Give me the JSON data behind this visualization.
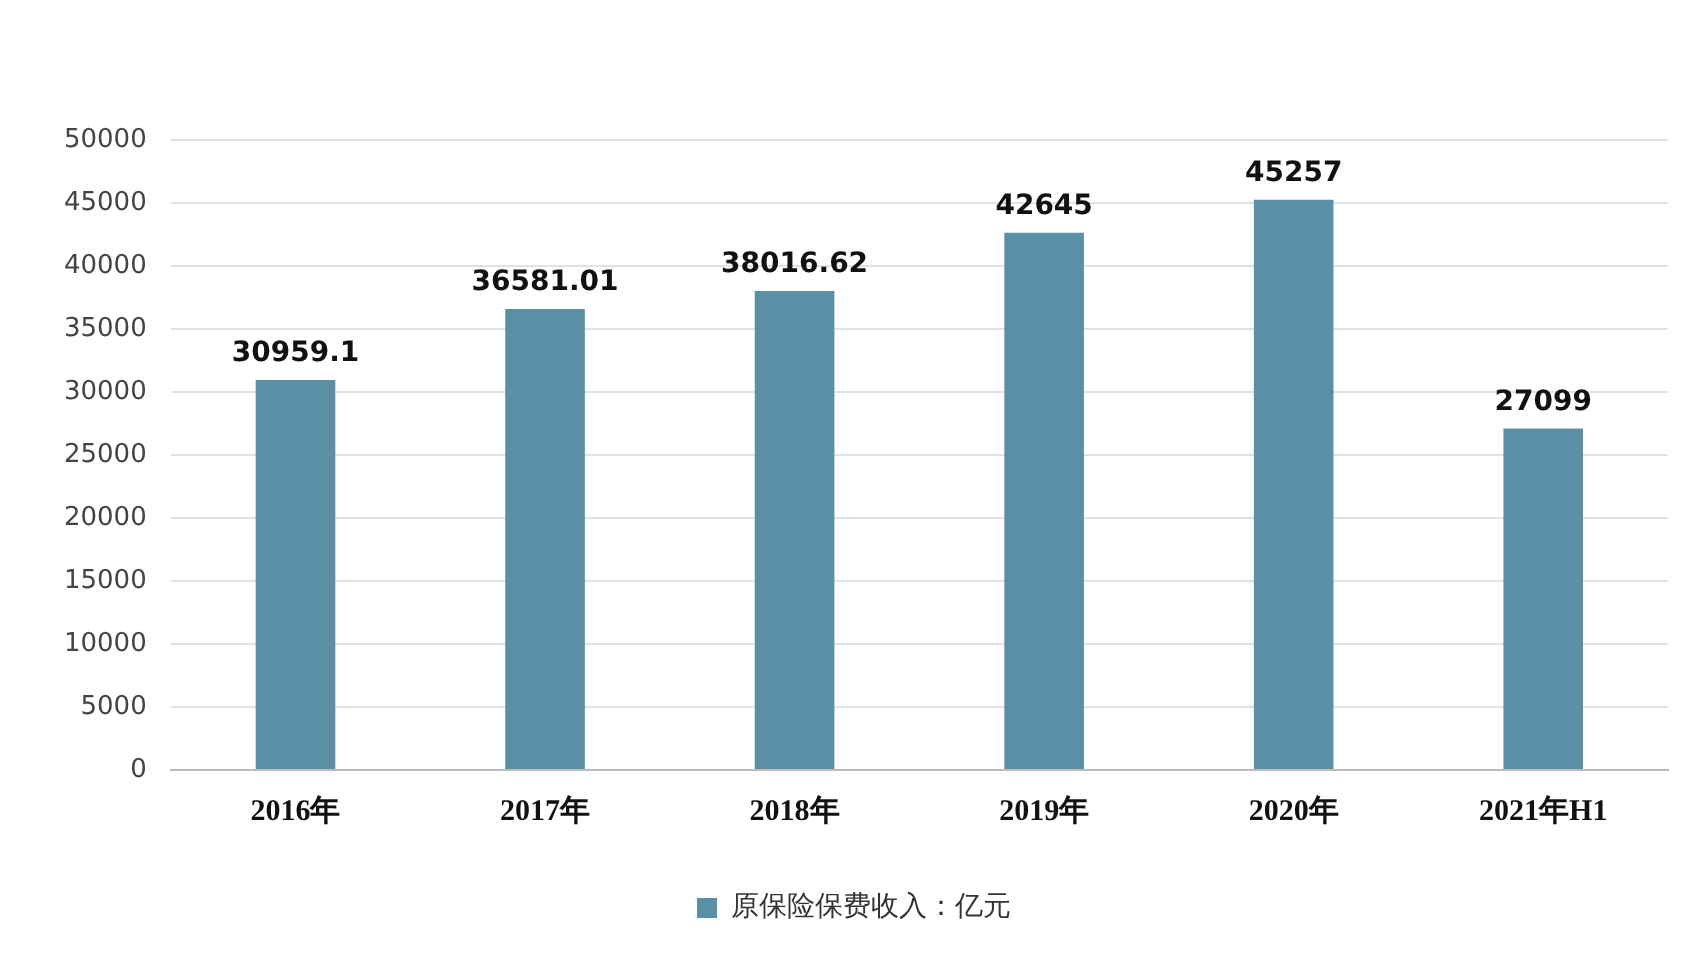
{
  "chart_data": {
    "type": "bar",
    "categories": [
      "2016年",
      "2017年",
      "2018年",
      "2019年",
      "2020年",
      "2021年H1"
    ],
    "series": [
      {
        "name": "原保险保费收入：亿元",
        "color": "#5b8fa6",
        "values": [
          30959.1,
          36581.01,
          38016.62,
          42645,
          45257,
          27099
        ]
      }
    ],
    "ylim": [
      0,
      50000
    ],
    "yticks": [
      0,
      5000,
      10000,
      15000,
      20000,
      25000,
      30000,
      35000,
      40000,
      45000,
      50000
    ],
    "grid": "y",
    "legend": "bottom",
    "data_labels": true
  }
}
